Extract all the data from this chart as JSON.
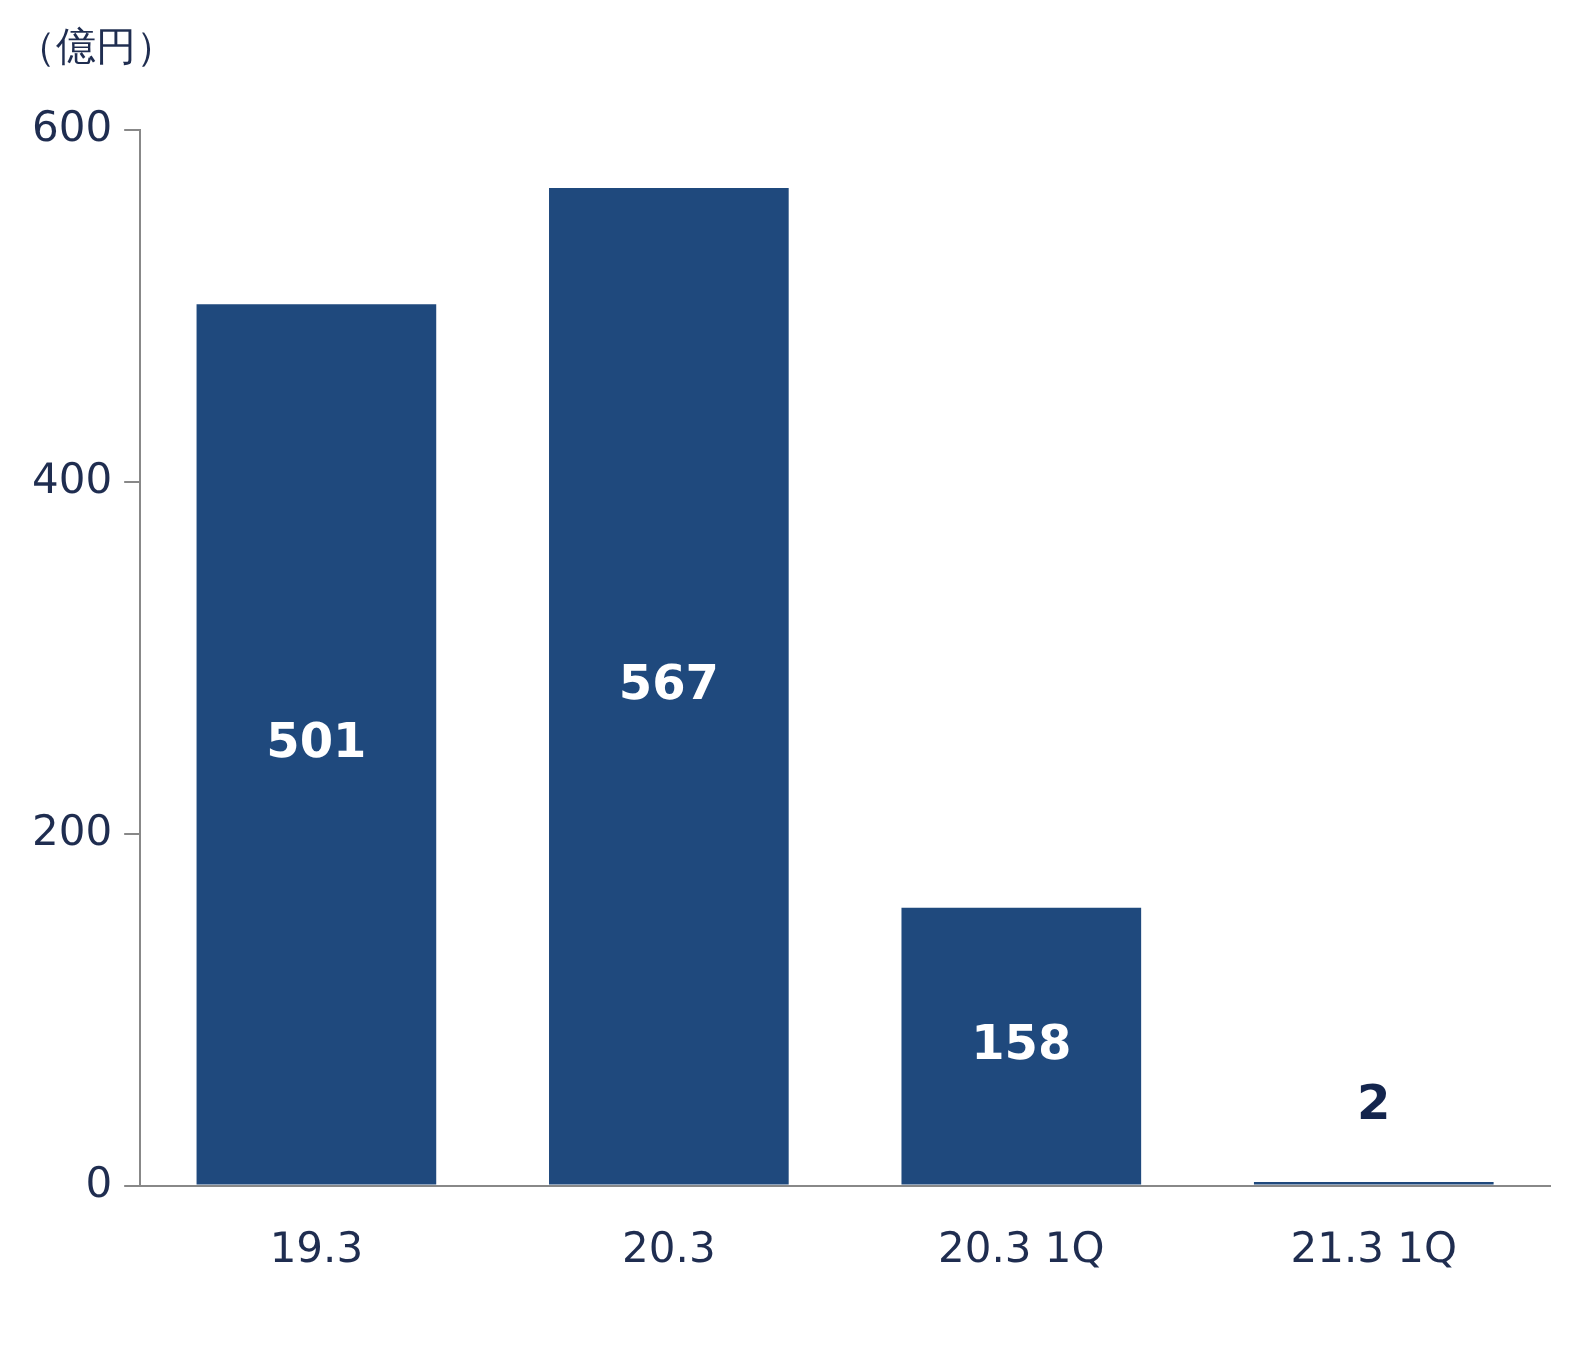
{
  "chart_data": {
    "type": "bar",
    "ylabel": "（億円）",
    "categories": [
      "19.3",
      "20.3",
      "20.3 1Q",
      "21.3 1Q"
    ],
    "values": [
      501,
      567,
      158,
      2
    ],
    "color": "#1f497d",
    "ylim": [
      0,
      600
    ],
    "yticks": [
      0,
      200,
      400,
      600
    ],
    "grid": false,
    "data_labels": true
  }
}
